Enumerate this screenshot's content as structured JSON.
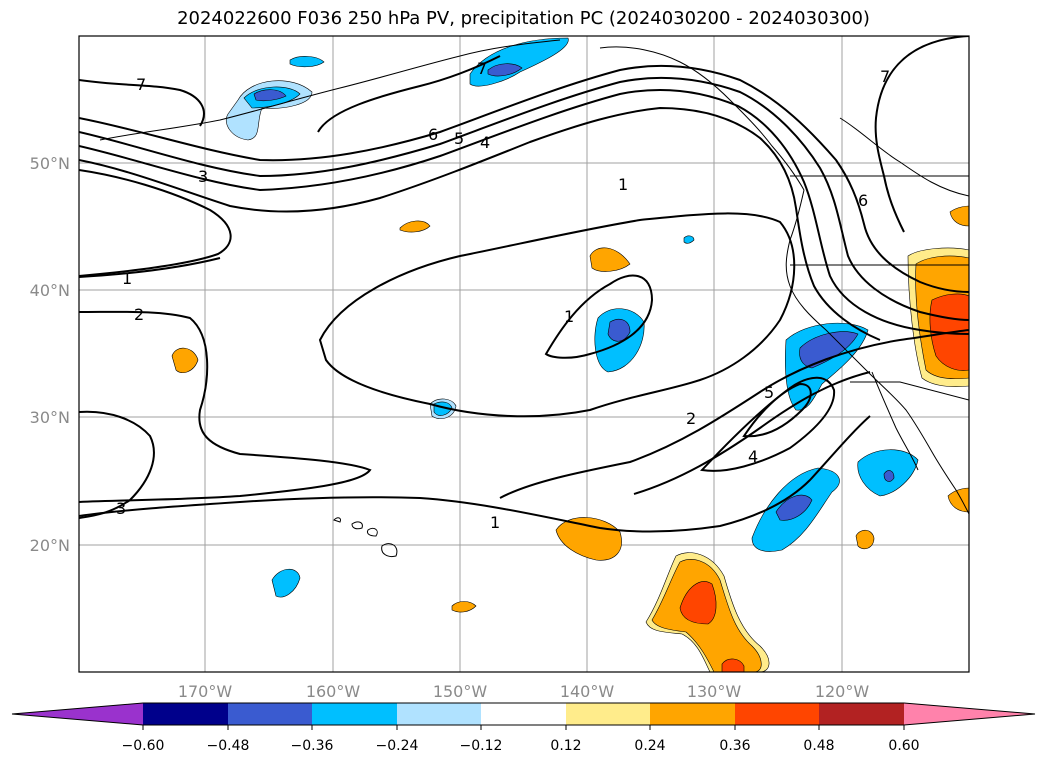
{
  "title": "2024022600 F036 250 hPa PV, precipitation PC (2024030200 - 2024030300)",
  "latitude_labels": [
    "50°N",
    "40°N",
    "30°N",
    "20°N"
  ],
  "longitude_labels": [
    "170°W",
    "160°W",
    "150°W",
    "140°W",
    "130°W",
    "120°W"
  ],
  "contour_labels": [
    "7",
    "7",
    "7",
    "6",
    "6",
    "5",
    "5",
    "4",
    "4",
    "3",
    "3",
    "2",
    "2",
    "1",
    "1",
    "1",
    "1"
  ],
  "colorbar": {
    "ticks": [
      "−0.60",
      "−0.48",
      "−0.36",
      "−0.24",
      "−0.12",
      "0.12",
      "0.24",
      "0.36",
      "0.48",
      "0.60"
    ],
    "colors": [
      "#9a32cd",
      "#00008b",
      "#3a5bd0",
      "#00bfff",
      "#b0e2ff",
      "#ffffff",
      "#ffec8b",
      "#ffa500",
      "#ff4500",
      "#b22222",
      "#ff82ab"
    ]
  },
  "colors": {
    "grid": "#a0a0a0",
    "contour": "#000000",
    "coast": "#000000"
  }
}
